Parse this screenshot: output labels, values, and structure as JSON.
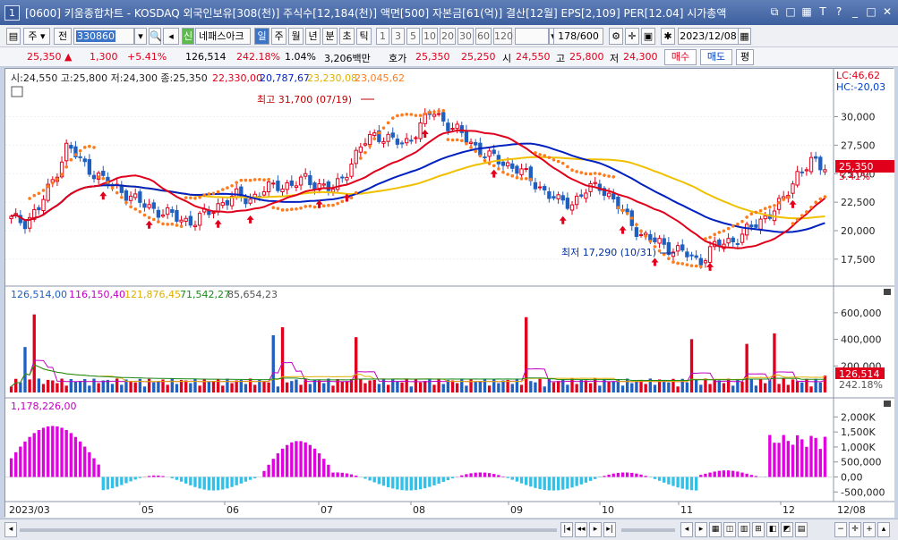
{
  "window": {
    "number": "1",
    "title": "[0600] 키움종합차트 - KOSDAQ 외국인보유[308(천)] 주식수[12,184(천)] 액면[500] 자본금[61(억)] 결산[12월] EPS[2,109] PER[12.04] 시가총액"
  },
  "toolbar": {
    "period_type": "주",
    "segment": "전",
    "code": "330860",
    "name": "네패스아크",
    "badge": "신",
    "periods": [
      "일",
      "주",
      "월",
      "년",
      "분",
      "초",
      "틱"
    ],
    "active_period": "일",
    "intervals": [
      "1",
      "3",
      "5",
      "10",
      "20",
      "30",
      "60",
      "120"
    ],
    "count": "178/600",
    "date": "2023/12/08"
  },
  "price": {
    "current": "25,350",
    "change_arrow": "▲",
    "change": "1,300",
    "change_pct": "+5.41%",
    "volume": "126,514",
    "volume_ratio": "242.18%",
    "turnover": "1.04%",
    "amount": "3,206백만",
    "quote_label": "호가",
    "ask": "25,350",
    "bid": "25,250",
    "open_label": "시",
    "open": "24,550",
    "high_label": "고",
    "high": "25,800",
    "low_label": "저",
    "low": "24,300",
    "buy": "매수",
    "sell": "매도",
    "eval": "평"
  },
  "main_legend": {
    "ohlc": "시:24,550 고:25,800 저:24,300 종:25,350",
    "ma": [
      "22,330,00",
      "20,787,67",
      "23,230,08",
      "23,045,62"
    ],
    "lc": "LC:46,62",
    "hc": "HC:-20,03"
  },
  "annotations": {
    "high": "최고 31,700 (07/19)",
    "low": "최저 17,290 (10/31)"
  },
  "price_axis": [
    "30,000",
    "27,500",
    "25,000",
    "22,500",
    "20,000",
    "17,500"
  ],
  "price_tag": {
    "value": "25,350",
    "pct": "5.41%"
  },
  "volume_legend": [
    "126,514,00",
    "116,150,40",
    "121,876,45",
    "71,542,27",
    "85,654,23"
  ],
  "volume_axis": [
    "600,000",
    "400,000",
    "200,000"
  ],
  "volume_tag": {
    "value": "126,514",
    "pct": "242.18%"
  },
  "osc_legend": "1,178,226,00",
  "osc_axis": [
    "2,000K",
    "1,500K",
    "1,000K",
    "500,000",
    "0,00",
    "-500,000"
  ],
  "date_axis": [
    "2023/03",
    "05",
    "06",
    "07",
    "08",
    "09",
    "10",
    "11",
    "12",
    "12/08"
  ],
  "colors": {
    "up": "#e0001b",
    "down": "#1f5fbf",
    "ma_red": "#e0001b",
    "ma_blue": "#0020c0",
    "ma_yellow": "#f0c000",
    "sar": "#ff7a1a",
    "osc_pos": "#e000e0",
    "osc_neg": "#30c0e8"
  },
  "chart_data": {
    "type": "candlestick",
    "closes_weekly_approx": [
      [
        21000,
        20800,
        22000,
        24500,
        27500,
        26000,
        25000,
        24000,
        23500,
        22500
      ],
      [
        22000,
        21500,
        21000,
        20800,
        21500,
        22500,
        23000,
        22800,
        23500,
        24000
      ],
      [
        24000,
        24500,
        24000,
        23500,
        25500,
        27500,
        28500,
        28000,
        27500,
        29000
      ],
      [
        30500,
        29500,
        28500,
        27500,
        26500,
        26000,
        25500,
        24500,
        23500,
        22500
      ],
      [
        22500,
        23500,
        24000,
        22500,
        21000,
        19500,
        19000,
        18500,
        18000,
        17290
      ],
      [
        18500,
        19000,
        19500,
        20500,
        21500,
        22500,
        25000,
        26000,
        25350
      ]
    ],
    "price_range": [
      16000,
      32000
    ]
  }
}
